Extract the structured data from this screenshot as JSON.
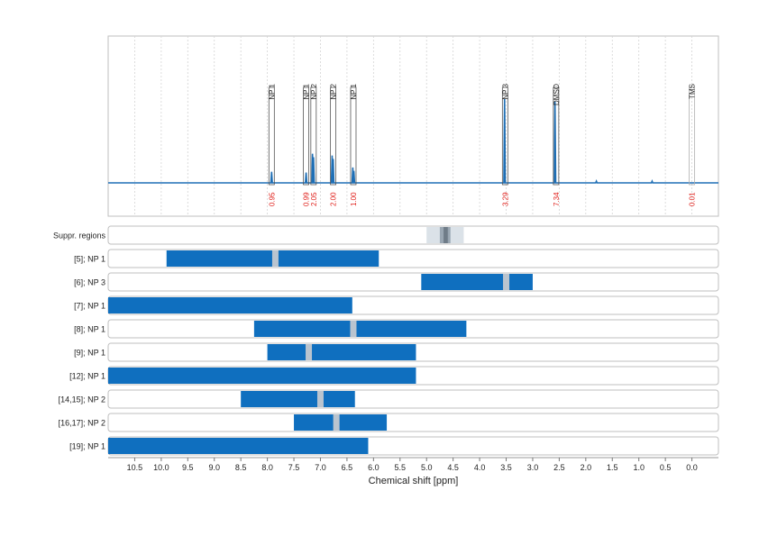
{
  "chart_data": {
    "type": "nmr-spectrum-with-range-bars",
    "xlabel": "Chemical shift [ppm]",
    "xlim": [
      11.0,
      -0.5
    ],
    "x_reversed": true,
    "x_ticks": [
      "10.5",
      "10.0",
      "9.5",
      "9.0",
      "8.5",
      "8.0",
      "7.5",
      "7.0",
      "6.5",
      "6.0",
      "5.5",
      "5.0",
      "4.5",
      "4.0",
      "3.5",
      "3.0",
      "2.5",
      "2.0",
      "1.5",
      "1.0",
      "0.5",
      "0.0"
    ],
    "x_tick_values": [
      10.5,
      10.0,
      9.5,
      9.0,
      8.5,
      8.0,
      7.5,
      7.0,
      6.5,
      6.0,
      5.5,
      5.0,
      4.5,
      4.0,
      3.5,
      3.0,
      2.5,
      2.0,
      1.5,
      1.0,
      0.5,
      0.0
    ],
    "spectrum": {
      "line_color": "#1f6fb5",
      "peaks": [
        {
          "shift": 7.92,
          "height": 0.13
        },
        {
          "shift": 7.27,
          "height": 0.12
        },
        {
          "shift": 7.15,
          "height": 0.34
        },
        {
          "shift": 7.13,
          "height": 0.3
        },
        {
          "shift": 6.78,
          "height": 0.32
        },
        {
          "shift": 6.76,
          "height": 0.28
        },
        {
          "shift": 6.39,
          "height": 0.18
        },
        {
          "shift": 6.37,
          "height": 0.14
        },
        {
          "shift": 3.53,
          "height": 0.98
        },
        {
          "shift": 2.58,
          "height": 0.95
        },
        {
          "shift": 1.8,
          "height": 0.02
        },
        {
          "shift": 0.75,
          "height": 0.02
        }
      ]
    },
    "annotations": [
      {
        "label": "NP 1",
        "shift": 7.92,
        "integral": "0.95"
      },
      {
        "label": "NP 1",
        "shift": 7.27,
        "integral": "0.99"
      },
      {
        "label": "NP 2",
        "shift": 7.13,
        "integral": "2.05"
      },
      {
        "label": "NP 2",
        "shift": 6.76,
        "integral": "2.00"
      },
      {
        "label": "NP 1",
        "shift": 6.38,
        "integral": "1.00"
      },
      {
        "label": "NP 3",
        "shift": 3.52,
        "integral": "3.29"
      },
      {
        "label": "DMSO",
        "shift": 2.56,
        "integral": "7.34"
      },
      {
        "label": "TMS",
        "shift": 0.0,
        "integral": "0.01"
      }
    ],
    "rows": [
      {
        "label": "Suppr. regions",
        "type": "suppression",
        "ranges": [
          [
            5.0,
            4.3
          ]
        ],
        "inner": [
          4.75,
          4.55
        ],
        "core": [
          4.68,
          4.6
        ]
      },
      {
        "label": "[5]; NP 1",
        "range": [
          9.9,
          5.9
        ],
        "marker": 7.85
      },
      {
        "label": "[6]; NP 3",
        "range": [
          5.1,
          3.0
        ],
        "marker": 3.5
      },
      {
        "label": "[7]; NP 1",
        "range": [
          11.0,
          6.4
        ],
        "marker": null
      },
      {
        "label": "[8]; NP 1",
        "range": [
          8.25,
          4.25
        ],
        "marker": 6.38
      },
      {
        "label": "[9]; NP 1",
        "range": [
          8.0,
          5.2
        ],
        "marker": 7.22
      },
      {
        "label": "[12]; NP 1",
        "range": [
          11.0,
          5.2
        ],
        "marker": null
      },
      {
        "label": "[14,15]; NP 2",
        "range": [
          8.5,
          6.35
        ],
        "marker": 7.0
      },
      {
        "label": "[16,17]; NP 2",
        "range": [
          7.5,
          5.75
        ],
        "marker": 6.7
      },
      {
        "label": "[19]; NP 1",
        "range": [
          11.0,
          6.1
        ],
        "marker": null
      }
    ],
    "colors": {
      "bar": "#0f6fbf",
      "marker": "#b9c4cf",
      "suppr_outer": "#dbe2e8",
      "suppr_inner": "#9aa7b3",
      "suppr_core": "#6f7c88",
      "integral": "#e0201b",
      "frame": "#bfbfbf"
    }
  }
}
